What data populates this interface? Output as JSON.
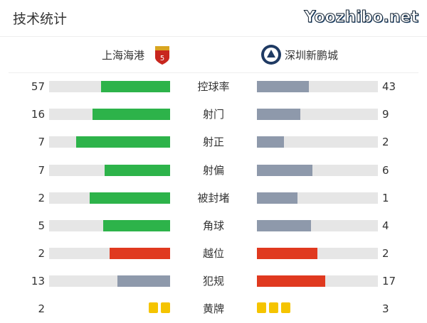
{
  "title": "技术统计",
  "home": {
    "name": "上海海港",
    "color": "#2db34a"
  },
  "away": {
    "name": "深圳新鹏城",
    "color": "#8e99ab"
  },
  "colors": {
    "green": "#2db34a",
    "grey": "#8e99ab",
    "red": "#e0391f",
    "track": "#e6e6e6",
    "yellow_card": "#f5c400"
  },
  "stats": [
    {
      "label": "控球率",
      "home": "57",
      "away": "43",
      "home_color": "#2db34a",
      "away_color": "#8e99ab"
    },
    {
      "label": "射门",
      "home": "16",
      "away": "9",
      "home_color": "#2db34a",
      "away_color": "#8e99ab"
    },
    {
      "label": "射正",
      "home": "7",
      "away": "2",
      "home_color": "#2db34a",
      "away_color": "#8e99ab"
    },
    {
      "label": "射偏",
      "home": "7",
      "away": "6",
      "home_color": "#2db34a",
      "away_color": "#8e99ab"
    },
    {
      "label": "被封堵",
      "home": "2",
      "away": "1",
      "home_color": "#2db34a",
      "away_color": "#8e99ab"
    },
    {
      "label": "角球",
      "home": "5",
      "away": "4",
      "home_color": "#2db34a",
      "away_color": "#8e99ab"
    },
    {
      "label": "越位",
      "home": "2",
      "away": "2",
      "home_color": "#e0391f",
      "away_color": "#e0391f"
    },
    {
      "label": "犯规",
      "home": "13",
      "away": "17",
      "home_color": "#8e99ab",
      "away_color": "#e0391f"
    }
  ],
  "yellow": {
    "label": "黄牌",
    "home": "2",
    "away": "3"
  },
  "watermark": "Yoozhibo.net"
}
